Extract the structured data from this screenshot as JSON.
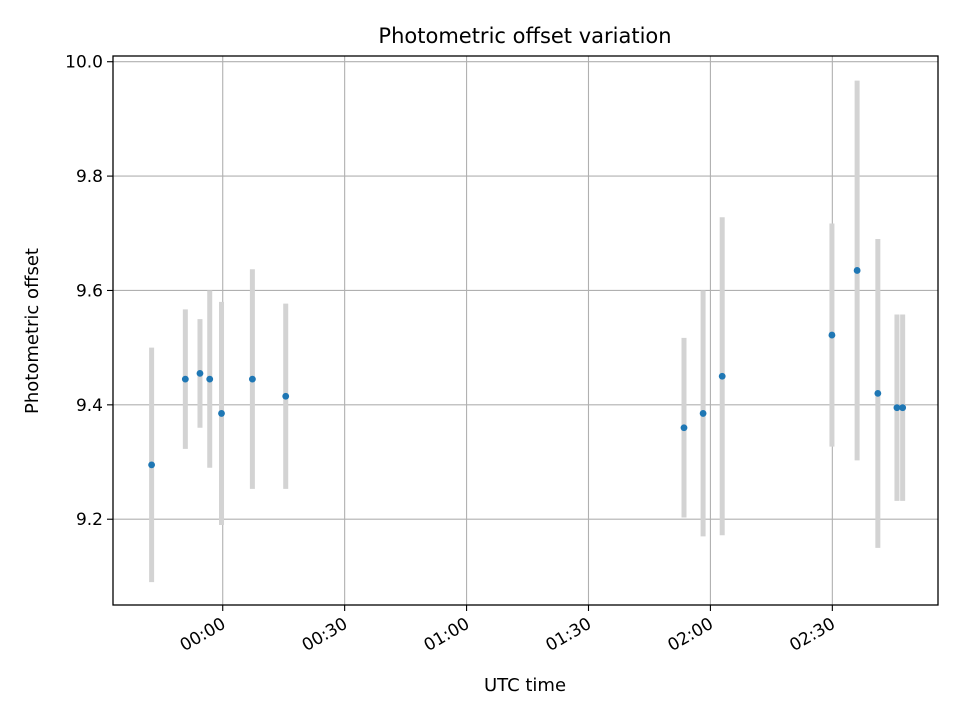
{
  "chart_data": {
    "type": "scatter",
    "title": "Photometric offset variation",
    "xlabel": "UTC time",
    "ylabel": "Photometric offset",
    "xlim_minutes": [
      -27,
      176
    ],
    "ylim": [
      9.05,
      10.01
    ],
    "x_ticks": [
      {
        "minute": 0,
        "label": "00:00"
      },
      {
        "minute": 30,
        "label": "00:30"
      },
      {
        "minute": 60,
        "label": "01:00"
      },
      {
        "minute": 90,
        "label": "01:30"
      },
      {
        "minute": 120,
        "label": "02:00"
      },
      {
        "minute": 150,
        "label": "02:30"
      }
    ],
    "y_ticks": [
      {
        "value": 9.2,
        "label": "9.2"
      },
      {
        "value": 9.4,
        "label": "9.4"
      },
      {
        "value": 9.6,
        "label": "9.6"
      },
      {
        "value": 9.8,
        "label": "9.8"
      },
      {
        "value": 10.0,
        "label": "10.0"
      }
    ],
    "grid": true,
    "colors": {
      "point": "#1f77b4",
      "errorbar": "#d3d3d3",
      "grid": "#b0b0b0"
    },
    "points": [
      {
        "minute": -17.5,
        "y": 9.295,
        "err": 0.205
      },
      {
        "minute": -9.2,
        "y": 9.445,
        "err": 0.122
      },
      {
        "minute": -5.6,
        "y": 9.455,
        "err": 0.095
      },
      {
        "minute": -3.2,
        "y": 9.445,
        "err": 0.155
      },
      {
        "minute": -0.3,
        "y": 9.385,
        "err": 0.195
      },
      {
        "minute": 7.3,
        "y": 9.445,
        "err": 0.192
      },
      {
        "minute": 15.5,
        "y": 9.415,
        "err": 0.162
      },
      {
        "minute": 113.5,
        "y": 9.36,
        "err": 0.157
      },
      {
        "minute": 118.2,
        "y": 9.385,
        "err": 0.215
      },
      {
        "minute": 122.9,
        "y": 9.45,
        "err": 0.278
      },
      {
        "minute": 149.9,
        "y": 9.522,
        "err": 0.195
      },
      {
        "minute": 156.1,
        "y": 9.635,
        "err": 0.332
      },
      {
        "minute": 161.2,
        "y": 9.42,
        "err": 0.27
      },
      {
        "minute": 165.9,
        "y": 9.395,
        "err": 0.163
      },
      {
        "minute": 167.3,
        "y": 9.395,
        "err": 0.163
      }
    ]
  }
}
